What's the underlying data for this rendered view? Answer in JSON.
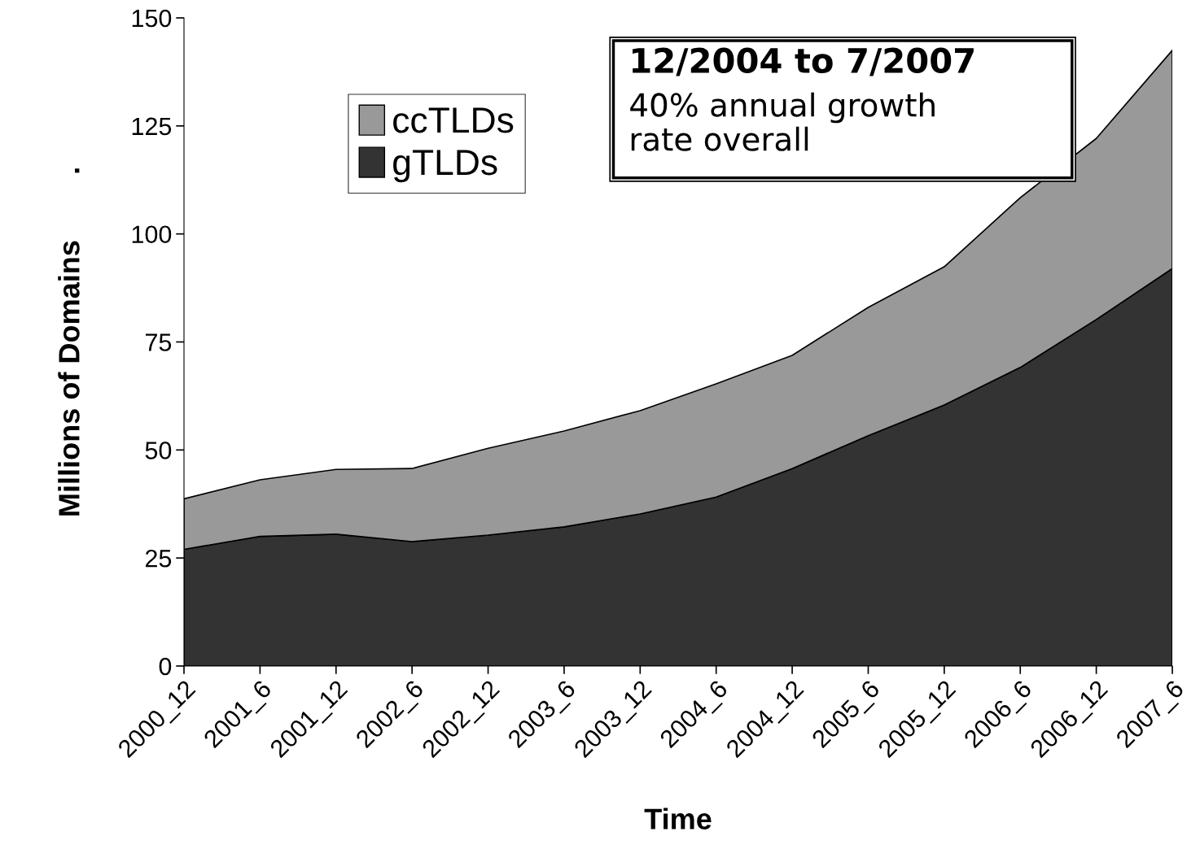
{
  "chart_data": {
    "type": "area",
    "stacked": true,
    "xlabel": "Time",
    "ylabel": "Millions of Domains        .",
    "categories": [
      "2000_12",
      "2001_6",
      "2001_12",
      "2002_6",
      "2002_12",
      "2003_6",
      "2003_12",
      "2004_6",
      "2004_12",
      "2005_6",
      "2005_12",
      "2006_6",
      "2006_12",
      "2007_6"
    ],
    "series": [
      {
        "name": "gTLDs",
        "color": "#333333",
        "values": [
          27,
          30,
          30.5,
          28.8,
          30.3,
          32.2,
          35.2,
          39.1,
          45.7,
          53.3,
          60.4,
          69.1,
          80.2,
          92
        ]
      },
      {
        "name": "ccTLDs",
        "color": "#999999",
        "values": [
          11.7,
          13.1,
          15,
          16.9,
          20.1,
          22.2,
          23.9,
          26.2,
          26.2,
          29.7,
          32,
          39.3,
          41.9,
          50.5
        ]
      }
    ],
    "ylim": [
      0,
      150
    ],
    "yticks": [
      0,
      25,
      50,
      75,
      100,
      125,
      150
    ],
    "grid": false,
    "legend": "top left",
    "annotations": [
      "12/2004 to 7/2007",
      "40% annual growth\nrate overall"
    ]
  }
}
